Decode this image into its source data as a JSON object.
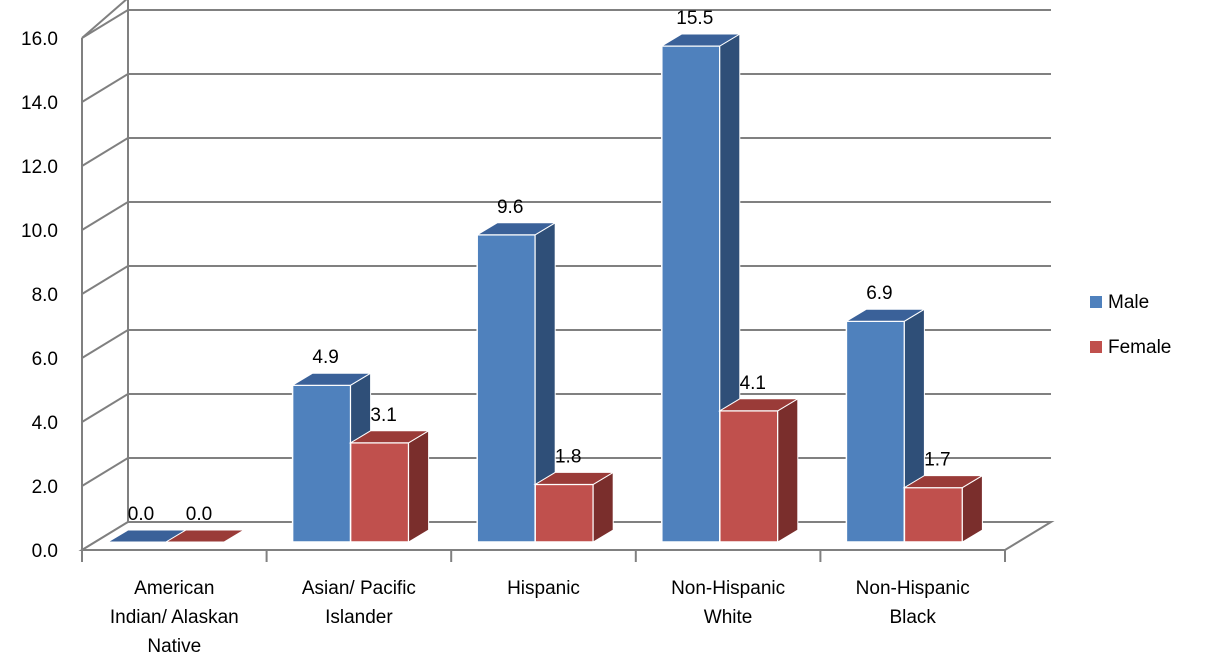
{
  "chart_data": {
    "type": "bar",
    "title": "",
    "xlabel": "",
    "ylabel": "",
    "ylim": [
      0,
      16
    ],
    "grid": true,
    "legend_position": "right",
    "categories": [
      [
        "American",
        "Indian/ Alaskan",
        "Native"
      ],
      [
        "Asian/ Pacific",
        "Islander"
      ],
      [
        "Hispanic"
      ],
      [
        "Non-Hispanic",
        "White"
      ],
      [
        "Non-Hispanic",
        "Black"
      ]
    ],
    "y_ticks": [
      "0.0",
      "2.0",
      "4.0",
      "6.0",
      "8.0",
      "10.0",
      "12.0",
      "14.0",
      "16.0"
    ],
    "series": [
      {
        "name": "Male",
        "values": [
          0.0,
          4.9,
          9.6,
          15.5,
          6.9
        ],
        "labels": [
          "0.0",
          "4.9",
          "9.6",
          "15.5",
          "6.9"
        ],
        "color": "#4F81BD",
        "side_color": "#2F4F78",
        "top_color": "#3A6199"
      },
      {
        "name": "Female",
        "values": [
          0.0,
          3.1,
          1.8,
          4.1,
          1.7
        ],
        "labels": [
          "0.0",
          "3.1",
          "1.8",
          "4.1",
          "1.7"
        ],
        "color": "#C0504D",
        "side_color": "#7A2E2C",
        "top_color": "#9A3B38"
      }
    ],
    "gridline_color": "#808080",
    "axis_color": "#808080"
  }
}
